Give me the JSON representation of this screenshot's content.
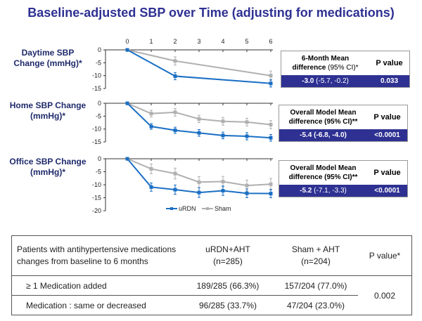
{
  "title": "Baseline-adjusted SBP over Time (adjusting for medications)",
  "colors": {
    "urdn": "#1a6fc4",
    "sham": "#b0b0b0",
    "title": "#2e3192",
    "stat_bar": "#2e3192"
  },
  "legend": {
    "urdn": "uRDN",
    "sham": "Sham"
  },
  "chart_data": [
    {
      "type": "line",
      "ylabel": "Daytime SBP Change (mmHg)*",
      "x_ticks": [
        0,
        1,
        2,
        3,
        4,
        5,
        6
      ],
      "y_ticks": [
        0,
        -5,
        -10,
        -15
      ],
      "ylim": [
        -15,
        0
      ],
      "xlim": [
        0,
        6
      ],
      "series": [
        {
          "name": "uRDN",
          "x": [
            0,
            2,
            6
          ],
          "y": [
            0,
            -10.2,
            -13.0
          ],
          "err": [
            0,
            1.4,
            1.4
          ]
        },
        {
          "name": "Sham",
          "x": [
            0,
            2,
            6
          ],
          "y": [
            0,
            -4.3,
            -10.0
          ],
          "err": [
            0,
            1.6,
            1.8
          ]
        }
      ]
    },
    {
      "type": "line",
      "ylabel": "Home SBP Change (mmHg)*",
      "x_ticks": [
        0,
        1,
        2,
        3,
        4,
        5,
        6
      ],
      "y_ticks": [
        0,
        -5,
        -10,
        -15
      ],
      "ylim": [
        -15,
        0
      ],
      "xlim": [
        0,
        6
      ],
      "series": [
        {
          "name": "uRDN",
          "x": [
            0,
            1,
            2,
            3,
            4,
            5,
            6
          ],
          "y": [
            0,
            -9.0,
            -10.5,
            -11.5,
            -12.5,
            -12.8,
            -13.4
          ],
          "err": [
            0,
            1.1,
            1.2,
            1.3,
            1.3,
            1.4,
            1.3
          ]
        },
        {
          "name": "Sham",
          "x": [
            0,
            1,
            2,
            3,
            4,
            5,
            6
          ],
          "y": [
            0,
            -4.0,
            -3.5,
            -6.1,
            -7.0,
            -7.3,
            -8.3
          ],
          "err": [
            0,
            1.3,
            1.5,
            1.4,
            1.5,
            1.5,
            1.6
          ]
        }
      ]
    },
    {
      "type": "line",
      "ylabel": "Office SBP Change (mmHg)*",
      "x_ticks": [
        0,
        1,
        2,
        3,
        4,
        5,
        6
      ],
      "y_ticks": [
        0,
        -5,
        -10,
        -15,
        -20
      ],
      "ylim": [
        -20,
        0
      ],
      "xlim": [
        0,
        6
      ],
      "series": [
        {
          "name": "uRDN",
          "x": [
            0,
            1,
            2,
            3,
            4,
            5,
            6
          ],
          "y": [
            0,
            -10.9,
            -11.9,
            -13.0,
            -12.3,
            -13.3,
            -13.4
          ],
          "err": [
            0,
            1.6,
            1.8,
            1.9,
            1.8,
            1.7,
            1.6
          ]
        },
        {
          "name": "Sham",
          "x": [
            0,
            1,
            2,
            3,
            4,
            5,
            6
          ],
          "y": [
            0,
            -3.9,
            -5.7,
            -9.0,
            -8.8,
            -10.3,
            -9.8
          ],
          "err": [
            0,
            1.9,
            2.1,
            2.1,
            2.0,
            2.1,
            2.2
          ]
        }
      ]
    }
  ],
  "panels": [
    {
      "label": "Daytime SBP Change (mmHg)*",
      "stat_head": "6-Month Mean",
      "stat_head2": "difference",
      "stat_ci": "(95% CI)*",
      "p_head": "P value",
      "est": "-3.0",
      "ci": "(-5.7, -0.2)",
      "p": "0.033"
    },
    {
      "label": "Home SBP Change (mmHg)*",
      "stat_head": "Overall Model Mean",
      "stat_head2": "difference (95% CI)**",
      "stat_ci": "",
      "p_head": "P value",
      "est": "-5.4",
      "ci": "(-6.8, -4.0)",
      "p": "<0.0001"
    },
    {
      "label": "Office SBP Change (mmHg)*",
      "stat_head": "Overall Model Mean",
      "stat_head2": "difference (95% CI)**",
      "stat_ci": "",
      "p_head": "P value",
      "est": "-5.2",
      "ci": "(-7.1, -3.3)",
      "p": "<0.0001"
    }
  ],
  "med_table": {
    "header": [
      "Patients with antihypertensive medications changes from baseline to 6 months",
      "uRDN+AHT (n=285)",
      "Sham + AHT (n=204)",
      "P value*"
    ],
    "header_lines": [
      [
        "Patients with antihypertensive medications",
        "changes from baseline to 6 months"
      ],
      [
        "uRDN+AHT",
        "(n=285)"
      ],
      [
        "Sham + AHT",
        "(n=204)"
      ]
    ],
    "rows": [
      [
        "≥ 1 Medication added",
        "189/285 (66.3%)",
        "157/204 (77.0%)"
      ],
      [
        "Medication : same or decreased",
        "96/285 (33.7%)",
        "47/204 (23.0%)"
      ]
    ],
    "p_value": "0.002"
  }
}
